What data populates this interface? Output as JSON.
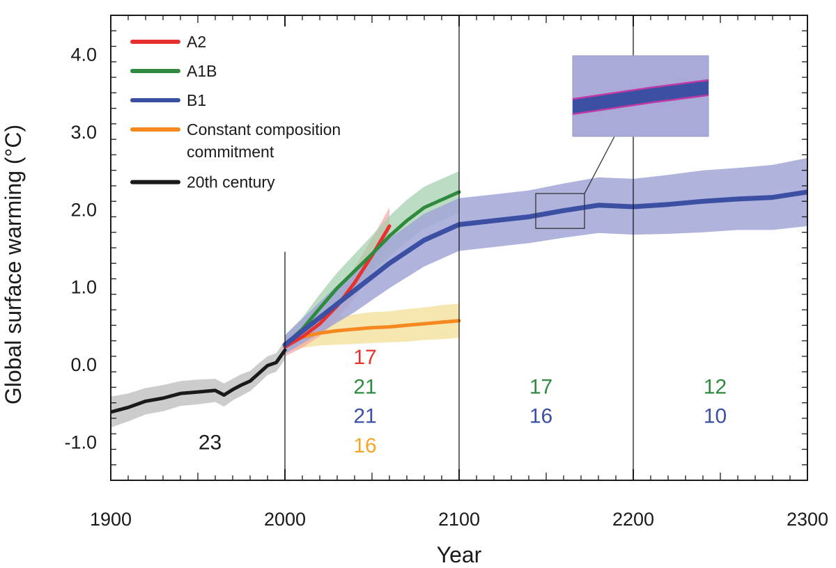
{
  "chart_data": {
    "type": "line",
    "xlabel": "Year",
    "ylabel": "Global surface warming (°C)",
    "xlim": [
      1900,
      2300
    ],
    "ylim": [
      -1.5,
      4.5
    ],
    "x_ticks": [
      1900,
      2000,
      2100,
      2200,
      2300
    ],
    "y_ticks": [
      -1.0,
      0.0,
      1.0,
      2.0,
      3.0,
      4.0
    ],
    "y_tick_labels": [
      "-1.0",
      "0.0",
      "1.0",
      "2.0",
      "3.0",
      "4.0"
    ],
    "period_dividers": [
      2000,
      2100,
      2200
    ],
    "legend_position": "top-left",
    "legend": [
      {
        "label": "A2",
        "color": "#e8312f"
      },
      {
        "label": "A1B",
        "color": "#2e8b3e"
      },
      {
        "label": "B1",
        "color": "#3b4fa3"
      },
      {
        "label": "Constant composition commitment",
        "color": "#f5891f"
      },
      {
        "label": "20th century",
        "color": "#1a1a1a"
      }
    ],
    "series": [
      {
        "name": "20th century",
        "color": "#1a1a1a",
        "band_color": "#b7b7b7",
        "x": [
          1900,
          1910,
          1920,
          1930,
          1940,
          1950,
          1960,
          1965,
          1970,
          1975,
          1980,
          1985,
          1990,
          1995,
          2000
        ],
        "y": [
          -0.62,
          -0.56,
          -0.48,
          -0.44,
          -0.38,
          -0.36,
          -0.34,
          -0.4,
          -0.33,
          -0.27,
          -0.22,
          -0.12,
          -0.02,
          0.02,
          0.18
        ],
        "spread": [
          0.2,
          0.18,
          0.17,
          0.17,
          0.16,
          0.16,
          0.15,
          0.15,
          0.14,
          0.14,
          0.13,
          0.13,
          0.12,
          0.12,
          0.12
        ]
      },
      {
        "name": "A2",
        "color": "#e8312f",
        "band_color": "#f3a7a3",
        "x": [
          2000,
          2010,
          2020,
          2030,
          2040,
          2050,
          2060
        ],
        "y": [
          0.22,
          0.35,
          0.52,
          0.75,
          1.05,
          1.4,
          1.78
        ],
        "spread": [
          0.12,
          0.14,
          0.16,
          0.18,
          0.2,
          0.22,
          0.24
        ]
      },
      {
        "name": "A1B",
        "color": "#2e8b3e",
        "band_color": "#9fceaa",
        "x": [
          2000,
          2010,
          2020,
          2030,
          2040,
          2050,
          2060,
          2070,
          2080,
          2090,
          2100
        ],
        "y": [
          0.25,
          0.45,
          0.72,
          0.98,
          1.2,
          1.42,
          1.65,
          1.85,
          2.02,
          2.12,
          2.22
        ],
        "spread": [
          0.12,
          0.15,
          0.18,
          0.2,
          0.22,
          0.24,
          0.26,
          0.27,
          0.27,
          0.27,
          0.27
        ]
      },
      {
        "name": "B1",
        "color": "#3b4fa3",
        "band_color": "#a2a6d6",
        "x": [
          2000,
          2020,
          2040,
          2060,
          2080,
          2100,
          2120,
          2140,
          2160,
          2180,
          2200,
          2220,
          2240,
          2260,
          2280,
          2300
        ],
        "y": [
          0.25,
          0.6,
          0.95,
          1.3,
          1.6,
          1.8,
          1.85,
          1.9,
          1.98,
          2.05,
          2.03,
          2.06,
          2.1,
          2.13,
          2.15,
          2.22
        ],
        "spread": [
          0.12,
          0.2,
          0.28,
          0.32,
          0.34,
          0.34,
          0.34,
          0.34,
          0.35,
          0.36,
          0.36,
          0.38,
          0.4,
          0.4,
          0.42,
          0.44
        ]
      },
      {
        "name": "Constant composition commitment",
        "color": "#f5891f",
        "band_color": "#f2dc8e",
        "x": [
          2000,
          2010,
          2020,
          2030,
          2040,
          2050,
          2060,
          2070,
          2080,
          2090,
          2100
        ],
        "y": [
          0.25,
          0.35,
          0.4,
          0.43,
          0.45,
          0.47,
          0.48,
          0.5,
          0.52,
          0.54,
          0.56
        ],
        "spread": [
          0.1,
          0.14,
          0.16,
          0.18,
          0.19,
          0.2,
          0.2,
          0.21,
          0.21,
          0.22,
          0.22
        ]
      }
    ],
    "model_counts": [
      {
        "x": 1957,
        "y": -1.1,
        "text": "23",
        "color": "#1a1a1a"
      },
      {
        "x": 2046,
        "y": 0.0,
        "text": "17",
        "color": "#e8312f"
      },
      {
        "x": 2046,
        "y": -0.38,
        "text": "21",
        "color": "#2e8b3e"
      },
      {
        "x": 2046,
        "y": -0.76,
        "text": "21",
        "color": "#3b4fa3"
      },
      {
        "x": 2046,
        "y": -1.14,
        "text": "16",
        "color": "#f5a623"
      },
      {
        "x": 2147,
        "y": -0.38,
        "text": "17",
        "color": "#2e8b3e"
      },
      {
        "x": 2147,
        "y": -0.76,
        "text": "16",
        "color": "#3b4fa3"
      },
      {
        "x": 2247,
        "y": -0.38,
        "text": "12",
        "color": "#2e8b3e"
      },
      {
        "x": 2247,
        "y": -0.76,
        "text": "10",
        "color": "#3b4fa3"
      }
    ],
    "inset": {
      "source_x": [
        2144,
        2172
      ],
      "source_y": [
        1.75,
        2.2
      ],
      "background": "#a9aad8"
    }
  }
}
